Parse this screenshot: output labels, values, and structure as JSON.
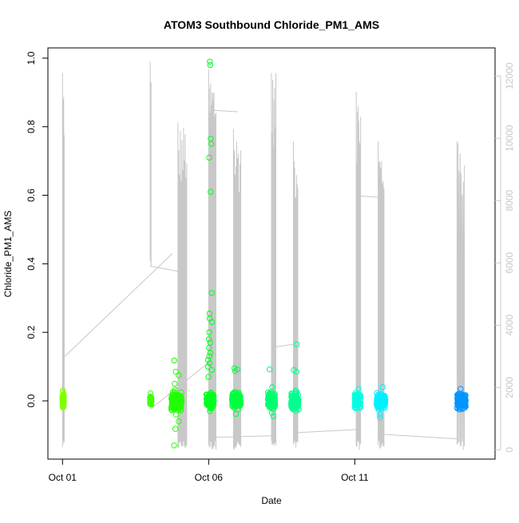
{
  "chart_data": {
    "type": "scatter",
    "title": "ATOM3 Southbound Chloride_PM1_AMS",
    "xlabel": "Date",
    "ylabel": "Chloride_PM1_AMS",
    "x_unit": "days since Oct 01",
    "xlim": [
      -0.5,
      14.8
    ],
    "ylim": [
      -0.17,
      1.03
    ],
    "y2lim": [
      -300,
      12900
    ],
    "x_ticks": [
      {
        "day": 0,
        "label": "Oct 01"
      },
      {
        "day": 5,
        "label": "Oct 06"
      },
      {
        "day": 10,
        "label": "Oct 11"
      }
    ],
    "y_ticks": [
      "0.0",
      "0.2",
      "0.4",
      "0.6",
      "0.8",
      "1.0"
    ],
    "y2_ticks": [
      "0",
      "2000",
      "4000",
      "6000",
      "8000",
      "10000",
      "12000"
    ],
    "y2_color": "#c8c8c8",
    "grid": false,
    "clusters": [
      {
        "day": 0.02,
        "spread": 0.05,
        "sd": 0.008,
        "n": 60,
        "color": "#80ff00",
        "outliers": [
          0.03,
          0.025,
          -0.015
        ]
      },
      {
        "day": 3.02,
        "spread": 0.05,
        "sd": 0.006,
        "n": 50,
        "color": "#40ff00",
        "outliers": [
          0.022,
          -0.01
        ]
      },
      {
        "day": 3.9,
        "spread": 0.35,
        "sd": 0.012,
        "n": 160,
        "color": "#20ff00",
        "outliers": [
          0.118,
          0.085,
          0.075,
          0.05,
          -0.04,
          -0.06,
          -0.082,
          -0.13
        ]
      },
      {
        "day": 5.05,
        "spread": 0.25,
        "sd": 0.01,
        "n": 140,
        "color": "#00ff20",
        "outliers": [
          0.99,
          0.98,
          0.765,
          0.75,
          0.71,
          0.61,
          0.315,
          0.255,
          0.24,
          0.23,
          0.2,
          0.18,
          0.17,
          0.155,
          0.14,
          0.13,
          0.12,
          0.11,
          0.1,
          0.09,
          0.07,
          -0.03
        ]
      },
      {
        "day": 5.95,
        "spread": 0.3,
        "sd": 0.01,
        "n": 140,
        "color": "#00ff40",
        "outliers": [
          0.095,
          0.092,
          0.087,
          -0.038,
          -0.025
        ]
      },
      {
        "day": 7.15,
        "spread": 0.25,
        "sd": 0.01,
        "n": 140,
        "color": "#00ff70",
        "outliers": [
          0.092,
          0.04,
          -0.045,
          -0.035
        ]
      },
      {
        "day": 7.95,
        "spread": 0.25,
        "sd": 0.01,
        "n": 140,
        "color": "#00ff90",
        "outliers": [
          0.165,
          0.09,
          0.085,
          -0.03
        ]
      },
      {
        "day": 10.1,
        "spread": 0.2,
        "sd": 0.01,
        "n": 140,
        "color": "#00ffe0",
        "outliers": [
          0.035,
          -0.02
        ]
      },
      {
        "day": 10.9,
        "spread": 0.3,
        "sd": 0.01,
        "n": 140,
        "color": "#00f0ff",
        "outliers": [
          0.04,
          -0.048,
          -0.04
        ]
      },
      {
        "day": 13.65,
        "spread": 0.3,
        "sd": 0.009,
        "n": 160,
        "color": "#0095ff",
        "outliers": [
          0.035,
          -0.025
        ]
      }
    ],
    "secondary_series": {
      "name": "right-axis trace",
      "color": "#c8c8c8",
      "spike_groups": [
        {
          "start": 0.0,
          "end": 0.06,
          "top": 12100,
          "low": 0,
          "n": 4
        },
        {
          "start": 3.0,
          "end": 3.03,
          "top": 12450,
          "low": 5800,
          "n": 2
        },
        {
          "start": 3.95,
          "end": 4.25,
          "top": 10500,
          "low": 0,
          "n": 12
        },
        {
          "start": 5.0,
          "end": 5.25,
          "top": 12200,
          "low": 0,
          "n": 12
        },
        {
          "start": 5.85,
          "end": 6.1,
          "top": 10300,
          "low": 0,
          "n": 10
        },
        {
          "start": 7.15,
          "end": 7.3,
          "top": 12100,
          "low": 0,
          "n": 8
        },
        {
          "start": 7.9,
          "end": 8.05,
          "top": 9900,
          "low": 0,
          "n": 8
        },
        {
          "start": 10.05,
          "end": 10.2,
          "top": 11500,
          "low": 0,
          "n": 8
        },
        {
          "start": 10.8,
          "end": 11.0,
          "top": 9900,
          "low": 0,
          "n": 8
        },
        {
          "start": 13.5,
          "end": 13.75,
          "top": 9900,
          "low": 0,
          "n": 8
        }
      ],
      "connectors": [
        [
          [
            0.08,
            3000
          ],
          [
            3.76,
            6300
          ]
        ],
        [
          [
            3.0,
            5900
          ],
          [
            4.1,
            5700
          ]
        ],
        [
          [
            3.0,
            1300
          ],
          [
            5.0,
            2800
          ]
        ],
        [
          [
            5.1,
            10900
          ],
          [
            6.0,
            10850
          ]
        ],
        [
          [
            5.1,
            400
          ],
          [
            7.15,
            450
          ]
        ],
        [
          [
            7.3,
            3300
          ],
          [
            8.0,
            3400
          ]
        ],
        [
          [
            8.0,
            550
          ],
          [
            10.1,
            650
          ]
        ],
        [
          [
            10.1,
            8150
          ],
          [
            10.9,
            8100
          ]
        ],
        [
          [
            10.9,
            500
          ],
          [
            13.5,
            350
          ]
        ]
      ]
    }
  }
}
